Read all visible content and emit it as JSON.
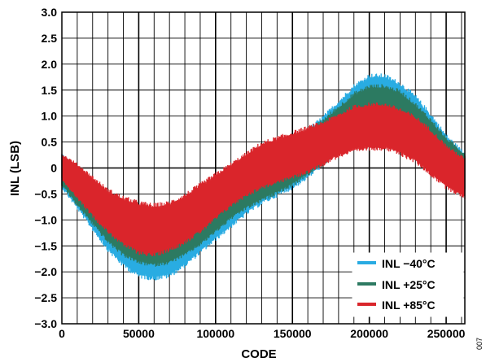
{
  "chart_data": {
    "type": "line",
    "xlabel": "CODE",
    "ylabel": "INL (LSB)",
    "xlim": [
      0,
      262143
    ],
    "ylim": [
      -3.0,
      3.0
    ],
    "x_major_ticks": [
      0,
      50000,
      100000,
      150000,
      200000,
      250000
    ],
    "x_tick_labels": [
      "0",
      "50000",
      "100000",
      "150000",
      "200000",
      "250000"
    ],
    "y_ticks": [
      3.0,
      2.5,
      2.0,
      1.5,
      1.0,
      0.5,
      0,
      -0.5,
      -1.0,
      -1.5,
      -2.0,
      -2.5,
      -3.0
    ],
    "y_tick_labels": [
      "3.0",
      "2.5",
      "2.0",
      "1.5",
      "1.0",
      "0.5",
      "0",
      "−0.5",
      "−1.0",
      "−1.5",
      "−2.0",
      "−2.5",
      "−3.0"
    ],
    "grid": true,
    "legend_position": "bottom-right",
    "side_id": "007",
    "series": [
      {
        "name": "INL −40°C",
        "color": "#29abe2",
        "x": [
          0,
          10000,
          20000,
          30000,
          40000,
          50000,
          60000,
          70000,
          80000,
          90000,
          100000,
          110000,
          120000,
          130000,
          140000,
          150000,
          160000,
          170000,
          180000,
          190000,
          200000,
          210000,
          220000,
          230000,
          240000,
          250000,
          262143
        ],
        "y_upper": [
          0.25,
          -0.05,
          -0.4,
          -0.7,
          -0.95,
          -1.1,
          -1.2,
          -1.15,
          -1.0,
          -0.8,
          -0.55,
          -0.3,
          -0.05,
          0.15,
          0.3,
          0.5,
          0.7,
          0.95,
          1.25,
          1.55,
          1.75,
          1.75,
          1.6,
          1.35,
          1.0,
          0.6,
          0.25
        ],
        "y_lower": [
          -0.35,
          -0.75,
          -1.15,
          -1.55,
          -1.85,
          -2.05,
          -2.1,
          -2.05,
          -1.85,
          -1.6,
          -1.35,
          -1.1,
          -0.85,
          -0.65,
          -0.5,
          -0.35,
          -0.15,
          0.1,
          0.4,
          0.7,
          0.9,
          0.9,
          0.75,
          0.5,
          0.15,
          -0.15,
          -0.45
        ]
      },
      {
        "name": "INL +25°C",
        "color": "#2d7a62",
        "x": [
          0,
          10000,
          20000,
          30000,
          40000,
          50000,
          60000,
          70000,
          80000,
          90000,
          100000,
          110000,
          120000,
          130000,
          140000,
          150000,
          160000,
          170000,
          180000,
          190000,
          200000,
          210000,
          220000,
          230000,
          240000,
          250000,
          262143
        ],
        "y_upper": [
          0.25,
          -0.05,
          -0.35,
          -0.65,
          -0.9,
          -1.05,
          -1.15,
          -1.1,
          -0.95,
          -0.75,
          -0.5,
          -0.3,
          -0.05,
          0.15,
          0.3,
          0.45,
          0.65,
          0.9,
          1.15,
          1.4,
          1.55,
          1.55,
          1.45,
          1.2,
          0.9,
          0.55,
          0.25
        ],
        "y_lower": [
          -0.3,
          -0.7,
          -1.05,
          -1.4,
          -1.65,
          -1.8,
          -1.85,
          -1.8,
          -1.65,
          -1.45,
          -1.2,
          -0.95,
          -0.75,
          -0.6,
          -0.45,
          -0.3,
          -0.1,
          0.1,
          0.35,
          0.6,
          0.75,
          0.75,
          0.65,
          0.4,
          0.1,
          -0.15,
          -0.4
        ]
      },
      {
        "name": "INL +85°C",
        "color": "#d9262c",
        "x": [
          0,
          10000,
          20000,
          30000,
          40000,
          50000,
          60000,
          70000,
          80000,
          90000,
          100000,
          110000,
          120000,
          130000,
          140000,
          150000,
          160000,
          170000,
          180000,
          190000,
          200000,
          210000,
          220000,
          230000,
          240000,
          250000,
          262143
        ],
        "y_upper": [
          0.25,
          0.05,
          -0.2,
          -0.45,
          -0.6,
          -0.7,
          -0.75,
          -0.7,
          -0.55,
          -0.35,
          -0.15,
          0.05,
          0.25,
          0.45,
          0.55,
          0.65,
          0.75,
          0.85,
          1.0,
          1.15,
          1.2,
          1.2,
          1.1,
          0.95,
          0.7,
          0.4,
          0.15
        ],
        "y_lower": [
          -0.2,
          -0.55,
          -0.9,
          -1.2,
          -1.45,
          -1.6,
          -1.65,
          -1.55,
          -1.4,
          -1.2,
          -0.95,
          -0.7,
          -0.5,
          -0.35,
          -0.25,
          -0.15,
          -0.05,
          0.1,
          0.25,
          0.35,
          0.4,
          0.4,
          0.3,
          0.15,
          -0.1,
          -0.35,
          -0.55
        ]
      }
    ]
  }
}
